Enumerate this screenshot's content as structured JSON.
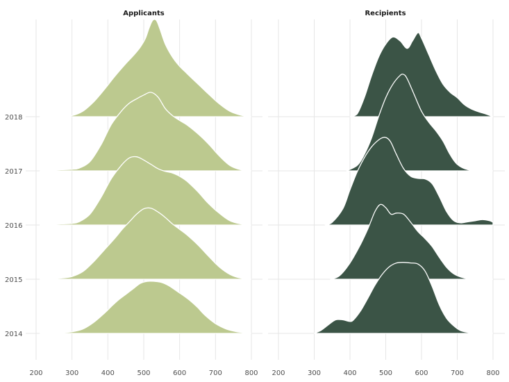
{
  "chart_data": [
    {
      "type": "area",
      "title": "Applicants",
      "xlabel": "",
      "ylabel": "",
      "xlim": [
        185,
        810
      ],
      "xticks": [
        200,
        300,
        400,
        500,
        600,
        700,
        800
      ],
      "categories": [
        "2014",
        "2015",
        "2016",
        "2017",
        "2018"
      ],
      "fill": "#bcc98f",
      "grid": true,
      "series": [
        {
          "name": "2014",
          "x": [
            210,
            260,
            300,
            330,
            360,
            390,
            410,
            430,
            450,
            470,
            490,
            510,
            530,
            550,
            570,
            590,
            610,
            630,
            650,
            670,
            700,
            730,
            760,
            800
          ],
          "y": [
            0,
            0.01,
            0.03,
            0.08,
            0.2,
            0.37,
            0.5,
            0.62,
            0.72,
            0.82,
            0.92,
            0.96,
            0.96,
            0.94,
            0.88,
            0.79,
            0.7,
            0.6,
            0.48,
            0.34,
            0.18,
            0.08,
            0.03,
            0
          ]
        },
        {
          "name": "2015",
          "x": [
            210,
            270,
            300,
            330,
            360,
            390,
            420,
            440,
            460,
            480,
            500,
            520,
            540,
            560,
            580,
            600,
            620,
            650,
            680,
            710,
            740,
            770,
            800
          ],
          "y": [
            0,
            0.02,
            0.05,
            0.14,
            0.32,
            0.54,
            0.76,
            0.92,
            1.06,
            1.2,
            1.3,
            1.31,
            1.24,
            1.14,
            1.02,
            0.92,
            0.82,
            0.64,
            0.43,
            0.23,
            0.09,
            0.02,
            0
          ]
        },
        {
          "name": "2016",
          "x": [
            210,
            270,
            300,
            320,
            350,
            380,
            410,
            440,
            460,
            480,
            500,
            520,
            540,
            560,
            580,
            600,
            620,
            650,
            680,
            710,
            740,
            770,
            800
          ],
          "y": [
            0,
            0.02,
            0.03,
            0.06,
            0.2,
            0.5,
            0.86,
            1.12,
            1.24,
            1.26,
            1.2,
            1.12,
            1.04,
            0.99,
            0.96,
            0.9,
            0.81,
            0.62,
            0.4,
            0.22,
            0.08,
            0.02,
            0
          ]
        },
        {
          "name": "2017",
          "x": [
            210,
            270,
            300,
            320,
            350,
            380,
            410,
            440,
            460,
            480,
            500,
            520,
            540,
            560,
            580,
            600,
            620,
            650,
            680,
            710,
            740,
            770,
            800
          ],
          "y": [
            0,
            0.02,
            0.03,
            0.05,
            0.17,
            0.47,
            0.86,
            1.12,
            1.25,
            1.33,
            1.4,
            1.45,
            1.36,
            1.15,
            1.02,
            0.93,
            0.85,
            0.69,
            0.5,
            0.28,
            0.1,
            0.02,
            0
          ]
        },
        {
          "name": "2018",
          "x": [
            210,
            270,
            300,
            330,
            360,
            390,
            420,
            450,
            470,
            490,
            505,
            515,
            525,
            535,
            545,
            560,
            580,
            600,
            620,
            650,
            680,
            710,
            740,
            770,
            800
          ],
          "y": [
            0,
            0.01,
            0.02,
            0.1,
            0.27,
            0.5,
            0.75,
            0.98,
            1.12,
            1.28,
            1.45,
            1.64,
            1.78,
            1.78,
            1.62,
            1.34,
            1.1,
            0.93,
            0.8,
            0.61,
            0.42,
            0.24,
            0.1,
            0.03,
            0
          ]
        }
      ]
    },
    {
      "type": "area",
      "title": "Recipients",
      "xlabel": "",
      "ylabel": "",
      "xlim": [
        185,
        810
      ],
      "xticks": [
        200,
        300,
        400,
        500,
        600,
        700,
        800
      ],
      "categories": [
        "2014",
        "2015",
        "2016",
        "2017",
        "2018"
      ],
      "fill": "#3b5446",
      "grid": true,
      "series": [
        {
          "name": "2014",
          "x": [
            300,
            320,
            340,
            360,
            380,
            400,
            410,
            430,
            450,
            470,
            490,
            510,
            530,
            550,
            570,
            590,
            610,
            630,
            650,
            670,
            690,
            710,
            740,
            770,
            800
          ],
          "y": [
            0,
            0.06,
            0.16,
            0.25,
            0.25,
            0.22,
            0.25,
            0.42,
            0.65,
            0.89,
            1.09,
            1.23,
            1.3,
            1.31,
            1.3,
            1.28,
            1.15,
            0.86,
            0.52,
            0.28,
            0.14,
            0.05,
            0.01,
            0,
            0
          ]
        },
        {
          "name": "2015",
          "x": [
            345,
            370,
            400,
            430,
            450,
            470,
            485,
            500,
            515,
            530,
            550,
            570,
            590,
            610,
            630,
            650,
            670,
            690,
            710,
            730,
            760,
            800
          ],
          "y": [
            0,
            0.06,
            0.3,
            0.65,
            0.93,
            1.25,
            1.38,
            1.32,
            1.2,
            1.22,
            1.2,
            1.05,
            0.88,
            0.75,
            0.6,
            0.4,
            0.22,
            0.1,
            0.04,
            0.01,
            0,
            0
          ]
        },
        {
          "name": "2016",
          "x": [
            330,
            350,
            380,
            400,
            420,
            440,
            460,
            480,
            495,
            505,
            515,
            530,
            550,
            570,
            590,
            610,
            630,
            650,
            670,
            690,
            710,
            730,
            750,
            770,
            790,
            800
          ],
          "y": [
            0,
            0.05,
            0.3,
            0.65,
            0.98,
            1.24,
            1.44,
            1.57,
            1.62,
            1.6,
            1.52,
            1.3,
            1.04,
            0.9,
            0.86,
            0.85,
            0.76,
            0.52,
            0.25,
            0.08,
            0.04,
            0.06,
            0.08,
            0.1,
            0.08,
            0.05
          ]
        },
        {
          "name": "2017",
          "x": [
            390,
            420,
            440,
            460,
            480,
            500,
            520,
            540,
            550,
            560,
            580,
            600,
            620,
            640,
            660,
            680,
            700,
            730,
            770,
            800
          ],
          "y": [
            0,
            0.1,
            0.3,
            0.6,
            1.0,
            1.35,
            1.6,
            1.76,
            1.78,
            1.7,
            1.4,
            1.1,
            0.9,
            0.74,
            0.55,
            0.3,
            0.12,
            0.02,
            0,
            0
          ]
        },
        {
          "name": "2018",
          "x": [
            400,
            420,
            440,
            460,
            480,
            500,
            520,
            540,
            560,
            575,
            590,
            600,
            620,
            640,
            660,
            680,
            700,
            720,
            740,
            760,
            780,
            800
          ],
          "y": [
            0,
            0.05,
            0.35,
            0.75,
            1.1,
            1.34,
            1.47,
            1.4,
            1.26,
            1.4,
            1.55,
            1.45,
            1.15,
            0.85,
            0.6,
            0.45,
            0.35,
            0.22,
            0.14,
            0.09,
            0.05,
            0
          ]
        }
      ]
    }
  ]
}
